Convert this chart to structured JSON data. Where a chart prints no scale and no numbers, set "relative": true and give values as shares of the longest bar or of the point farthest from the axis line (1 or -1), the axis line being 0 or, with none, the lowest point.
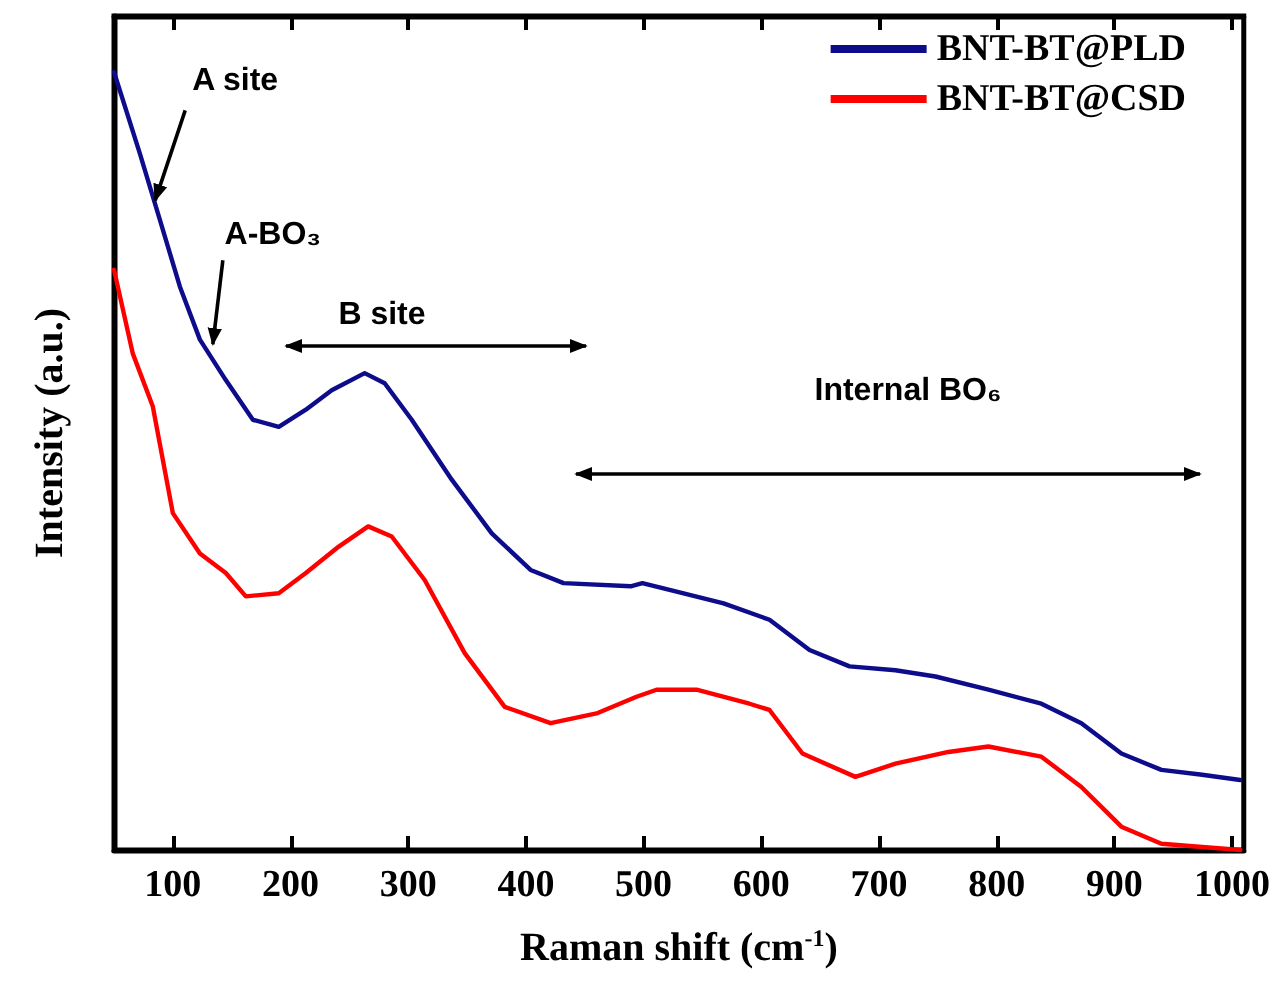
{
  "chart_data": {
    "type": "line",
    "relative": true,
    "xlabel": "Raman shift (cm$^{-1}$)",
    "ylabel": "Intensity (a.u.)",
    "xlim": [
      50,
      1010
    ],
    "xticks": [
      100,
      200,
      300,
      400,
      500,
      600,
      700,
      800,
      900,
      1000
    ],
    "legend": "top right",
    "grid": false,
    "marker": "none",
    "line_style": "solid",
    "annotations": [
      {
        "text": "A site",
        "x": 85,
        "y": 0.835
      },
      {
        "text": "A-BO₃",
        "x": 134,
        "y": 0.65
      },
      "B site",
      "Internal BO₆"
    ],
    "series": [
      {
        "name": "BNT-BT@PLD",
        "color": "#0d0d8c",
        "x": [
          50,
          72,
          89,
          106,
          123,
          145,
          168,
          190,
          213,
          235,
          263,
          280,
          303,
          337,
          371,
          404,
          432,
          489,
          499,
          534,
          568,
          607,
          641,
          675,
          714,
          748,
          793,
          838,
          872,
          906,
          940,
          973,
          1007
        ],
        "values": [
          1.0,
          0.895,
          0.81,
          0.724,
          0.656,
          0.604,
          0.553,
          0.544,
          0.566,
          0.591,
          0.613,
          0.6,
          0.553,
          0.476,
          0.407,
          0.36,
          0.343,
          0.339,
          0.343,
          0.33,
          0.317,
          0.296,
          0.257,
          0.236,
          0.231,
          0.223,
          0.206,
          0.188,
          0.163,
          0.124,
          0.103,
          0.097,
          0.09
        ]
      },
      {
        "name": "BNT-BT@CSD",
        "color": "#ff0000",
        "x": [
          50,
          66,
          83,
          100,
          123,
          145,
          162,
          190,
          213,
          241,
          266,
          286,
          314,
          348,
          382,
          421,
          461,
          494,
          511,
          545,
          590,
          607,
          635,
          680,
          714,
          759,
          793,
          838,
          872,
          906,
          940,
          1007
        ],
        "values": [
          0.746,
          0.638,
          0.57,
          0.433,
          0.381,
          0.356,
          0.326,
          0.33,
          0.356,
          0.39,
          0.416,
          0.403,
          0.347,
          0.253,
          0.184,
          0.163,
          0.176,
          0.197,
          0.206,
          0.206,
          0.188,
          0.18,
          0.124,
          0.094,
          0.111,
          0.126,
          0.133,
          0.12,
          0.081,
          0.03,
          0.008,
          0.0
        ]
      }
    ]
  }
}
